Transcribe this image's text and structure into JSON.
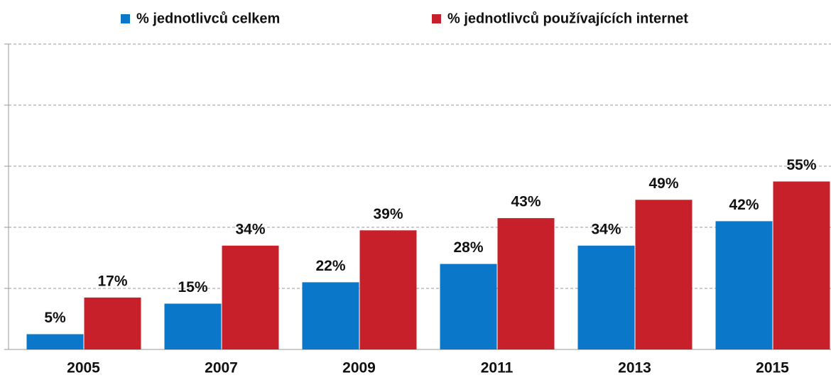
{
  "chart_data": {
    "type": "bar",
    "categories": [
      "2005",
      "2007",
      "2009",
      "2011",
      "2013",
      "2015"
    ],
    "series": [
      {
        "name": "% jednotlivců celkem",
        "color": "#0a77c8",
        "values": [
          5,
          15,
          22,
          28,
          34,
          42
        ],
        "value_labels": [
          "5%",
          "15%",
          "22%",
          "28%",
          "34%",
          "42%"
        ]
      },
      {
        "name": "% jednotlivců používajících internet",
        "color": "#c8202a",
        "values": [
          17,
          34,
          39,
          43,
          49,
          55
        ],
        "value_labels": [
          "17%",
          "34%",
          "39%",
          "43%",
          "49%",
          "55%"
        ]
      }
    ],
    "ylim": [
      0,
      100
    ],
    "yticks": [
      0,
      20,
      40,
      60,
      80,
      100
    ],
    "grid": true,
    "legend": "top"
  }
}
